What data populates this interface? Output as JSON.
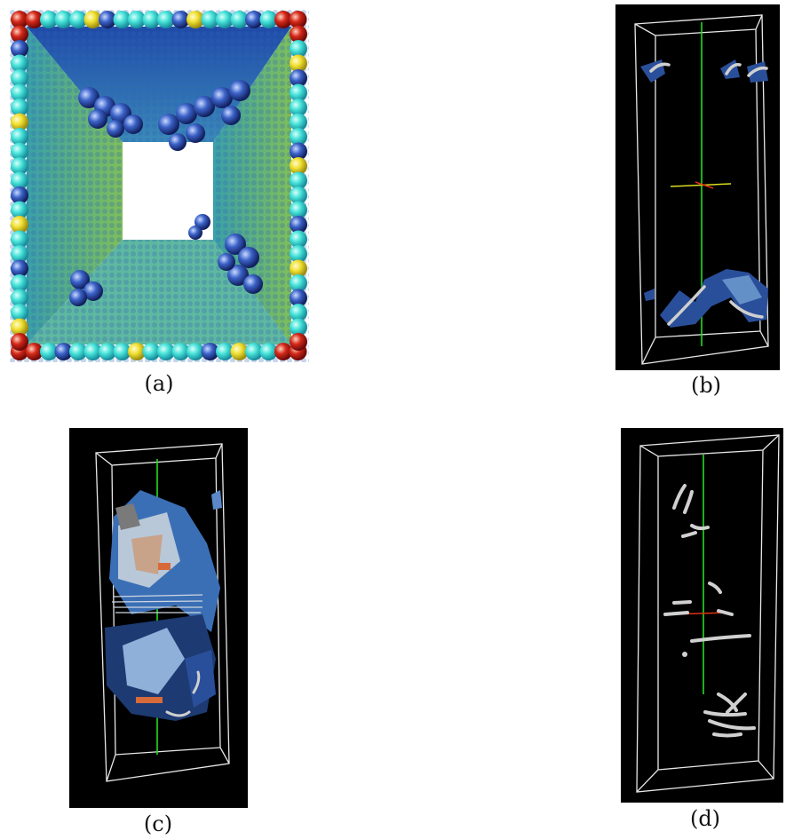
{
  "figure": {
    "panels": [
      {
        "id": "a",
        "caption": "(a)"
      },
      {
        "id": "b",
        "caption": "(b)"
      },
      {
        "id": "c",
        "caption": "(c)"
      },
      {
        "id": "d",
        "caption": "(d)"
      }
    ]
  },
  "colors": {
    "background_black": "#000000",
    "box_wire": "#e8e8e8",
    "axis_green": "#22dd22",
    "axis_red": "#dd3311",
    "axis_yellow": "#dddd22",
    "surface_blue": "#2a4f9a",
    "surface_light_blue": "#6f9bd0",
    "tube_gray": "#cfcfcf",
    "sphere_cyan": "#3fe0d8",
    "sphere_yellow": "#f0e030",
    "sphere_red": "#d02020"
  }
}
